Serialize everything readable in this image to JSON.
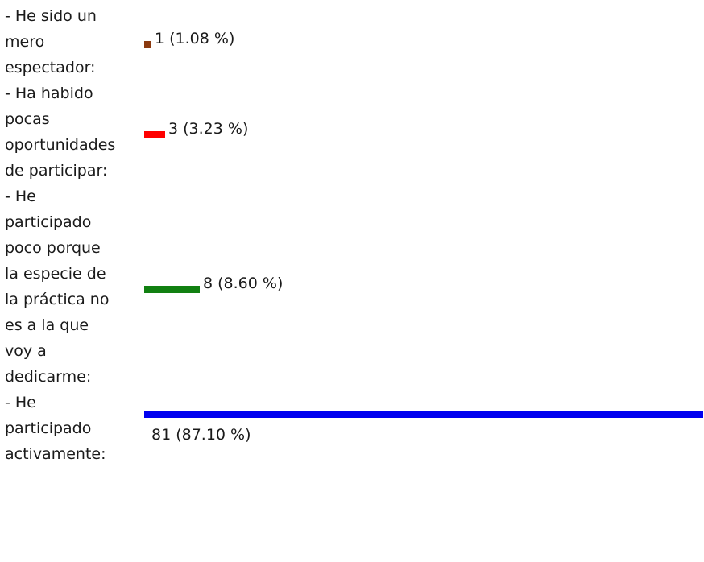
{
  "chart_data": {
    "type": "bar",
    "orientation": "horizontal",
    "categories": [
      [
        "- He sido un",
        "mero",
        "espectador:"
      ],
      [
        "- Ha habido",
        "pocas",
        "oportunidades",
        "de participar:"
      ],
      [
        "- He",
        "participado",
        "poco porque",
        "la especie de",
        "la práctica no",
        "es a la que",
        "voy a",
        "dedicarme:"
      ],
      [
        "- He",
        "participado",
        "activamente:"
      ]
    ],
    "values": [
      1,
      3,
      8,
      81
    ],
    "percentages": [
      1.08,
      3.23,
      8.6,
      87.1
    ],
    "value_labels": [
      "1 (1.08 %)",
      "3 (3.23 %)",
      "8 (8.60 %)",
      "81 (87.10 %)"
    ],
    "colors": [
      "#8b3a0f",
      "#ff0000",
      "#118011",
      "#0000f0"
    ]
  }
}
